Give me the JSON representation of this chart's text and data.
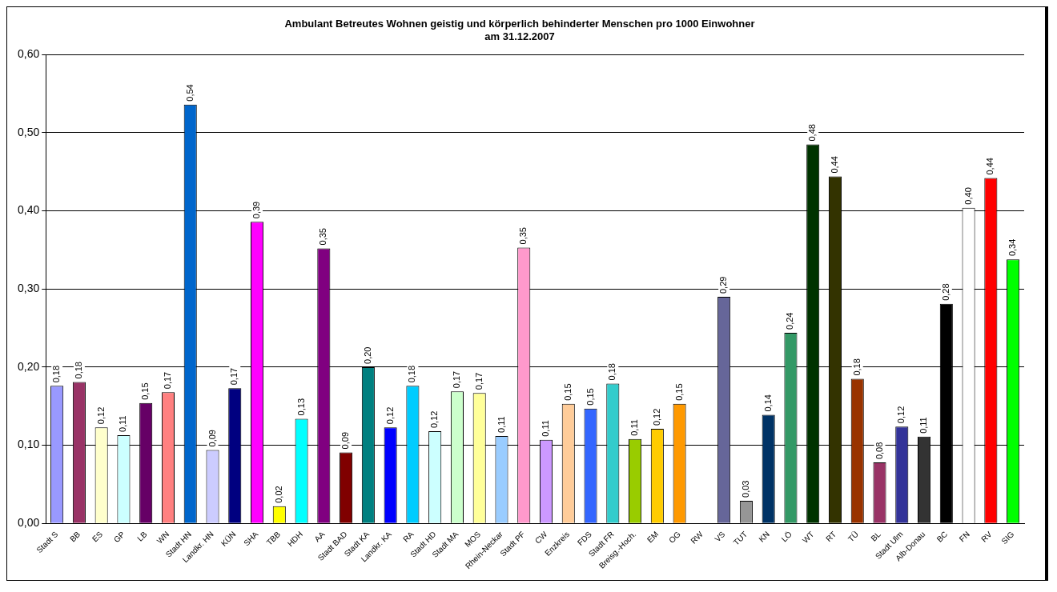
{
  "chart_data": {
    "type": "bar",
    "title": "Ambulant Betreutes Wohnen geistig und körperlich behinderter Menschen pro 1000 Einwohner\nam 31.12.2007",
    "categories": [
      "Stadt S",
      "BB",
      "ES",
      "GP",
      "LB",
      "WN",
      "Stadt HN",
      "Landkr. HN",
      "KÜN",
      "SHA",
      "TBB",
      "HDH",
      "AA",
      "Stadt BAD",
      "Stadt KA",
      "Landkr. KA",
      "RA",
      "Stadt HD",
      "Stadt MA",
      "MOS",
      "Rhein-Neckar",
      "Stadt PF",
      "CW",
      "Enzkreis",
      "FDS",
      "Stadt FR",
      "Breisg.-Hoch.",
      "EM",
      "OG",
      "RW",
      "VS",
      "TUT",
      "KN",
      "LÖ",
      "WT",
      "RT",
      "TÜ",
      "BL",
      "Stadt Ulm",
      "Alb-Donau",
      "BC",
      "FN",
      "RV",
      "SIG"
    ],
    "values": [
      0.176,
      0.181,
      0.123,
      0.113,
      0.154,
      0.168,
      0.536,
      0.094,
      0.173,
      0.386,
      0.022,
      0.134,
      0.352,
      0.091,
      0.2,
      0.123,
      0.176,
      0.118,
      0.169,
      0.167,
      0.112,
      0.353,
      0.107,
      0.153,
      0.147,
      0.179,
      0.108,
      0.121,
      0.153,
      null,
      0.29,
      0.029,
      0.139,
      0.244,
      0.485,
      0.444,
      0.185,
      0.078,
      0.124,
      0.111,
      0.281,
      0.404,
      0.442,
      0.338
    ],
    "value_labels": [
      "0,18",
      "0,18",
      "0,12",
      "0,11",
      "0,15",
      "0,17",
      "0,54",
      "0,09",
      "0,17",
      "0,39",
      "0,02",
      "0,13",
      "0,35",
      "0,09",
      "0,20",
      "0,12",
      "0,18",
      "0,12",
      "0,17",
      "0,17",
      "0,11",
      "0,35",
      "0,11",
      "0,15",
      "0,15",
      "0,18",
      "0,11",
      "0,12",
      "0,15",
      null,
      "0,29",
      "0,03",
      "0,14",
      "0,24",
      "0,48",
      "0,44",
      "0,18",
      "0,08",
      "0,12",
      "0,11",
      "0,28",
      "0,40",
      "0,44",
      "0,34"
    ],
    "colors": [
      "#9999ff",
      "#993366",
      "#ffffcc",
      "#ccffff",
      "#660066",
      "#ff8080",
      "#0066cc",
      "#ccccff",
      "#000080",
      "#ff00ff",
      "#ffff00",
      "#00ffff",
      "#800080",
      "#800000",
      "#008080",
      "#0000ff",
      "#00ccff",
      "#ccffff",
      "#ccffcc",
      "#ffff99",
      "#99ccff",
      "#ff99cc",
      "#cc99ff",
      "#ffcc99",
      "#3366ff",
      "#33cccc",
      "#99cc00",
      "#ffcc00",
      "#ff9900",
      "#ffffff",
      "#666699",
      "#969696",
      "#003366",
      "#339966",
      "#003300",
      "#333300",
      "#993300",
      "#993366",
      "#333399",
      "#333333",
      "#000000",
      "#ffffff",
      "#ff0000",
      "#00ff00"
    ],
    "ylim": [
      0,
      0.6
    ],
    "yticks": [
      {
        "value": 0,
        "label": "0,00"
      },
      {
        "value": 0.1,
        "label": "0,10"
      },
      {
        "value": 0.2,
        "label": "0,20"
      },
      {
        "value": 0.3,
        "label": "0,30"
      },
      {
        "value": 0.4,
        "label": "0,40"
      },
      {
        "value": 0.5,
        "label": "0,50"
      },
      {
        "value": 0.6,
        "label": "0,60"
      }
    ],
    "grid": "y",
    "legend": false
  }
}
